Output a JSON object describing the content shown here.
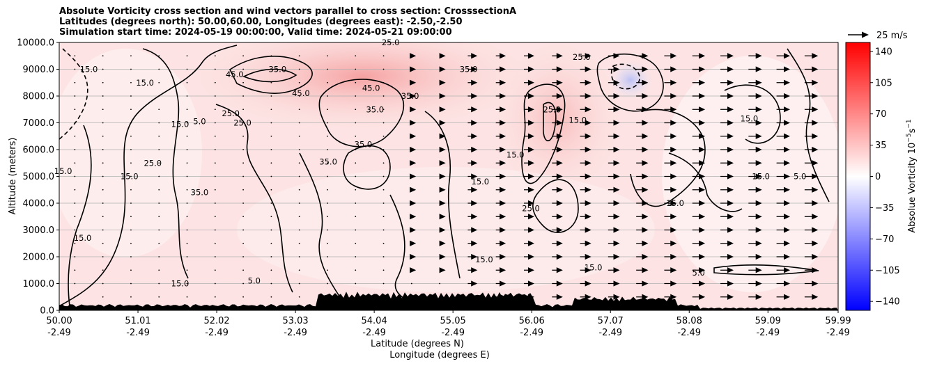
{
  "header": {
    "title_line1": "Absolute Vorticity cross section and wind vectors parallel to cross section: CrosssectionA",
    "title_line2": "Latitudes (degrees north): 50.00,60.00, Longitudes (degrees east): -2.50,-2.50",
    "title_line3": "Simulation start time: 2024-05-19 00:00:00, Valid time: 2024-05-21 09:00:00"
  },
  "chart_data": {
    "type": "heatmap",
    "subtype": "vertical cross section with contours and wind vectors",
    "xlabel_line1": "Latitude (degrees N)",
    "xlabel_line2": "Longitude (degrees E)",
    "ylabel": "Altitude (meters)",
    "ylim": [
      0,
      10000
    ],
    "xlim": [
      50.0,
      59.99
    ],
    "y_ticks": [
      {
        "value": 0,
        "label": "0.0"
      },
      {
        "value": 1000,
        "label": "1000.0"
      },
      {
        "value": 2000,
        "label": "2000.0"
      },
      {
        "value": 3000,
        "label": "3000.0"
      },
      {
        "value": 4000,
        "label": "4000.0"
      },
      {
        "value": 5000,
        "label": "5000.0"
      },
      {
        "value": 6000,
        "label": "6000.0"
      },
      {
        "value": 7000,
        "label": "7000.0"
      },
      {
        "value": 8000,
        "label": "8000.0"
      },
      {
        "value": 9000,
        "label": "9000.0"
      },
      {
        "value": 10000,
        "label": "10000.0"
      }
    ],
    "x_ticks": [
      {
        "lat": 50.0,
        "lat_label": "50.00",
        "lon_label": "-2.49"
      },
      {
        "lat": 51.01,
        "lat_label": "51.01",
        "lon_label": "-2.49"
      },
      {
        "lat": 52.02,
        "lat_label": "52.02",
        "lon_label": "-2.49"
      },
      {
        "lat": 53.03,
        "lat_label": "53.03",
        "lon_label": "-2.49"
      },
      {
        "lat": 54.04,
        "lat_label": "54.04",
        "lon_label": "-2.49"
      },
      {
        "lat": 55.05,
        "lat_label": "55.05",
        "lon_label": "-2.49"
      },
      {
        "lat": 56.06,
        "lat_label": "56.06",
        "lon_label": "-2.49"
      },
      {
        "lat": 57.07,
        "lat_label": "57.07",
        "lon_label": "-2.49"
      },
      {
        "lat": 58.08,
        "lat_label": "58.08",
        "lon_label": "-2.49"
      },
      {
        "lat": 59.09,
        "lat_label": "59.09",
        "lon_label": "-2.49"
      },
      {
        "lat": 59.99,
        "lat_label": "59.99",
        "lon_label": "-2.49"
      }
    ],
    "grid": "horizontal",
    "colorbar": {
      "label": "Absolue Vorticity 10$^{-5}$s$^{-1}$",
      "label_text": "Absolue Vorticity 10",
      "label_exp": "−5",
      "label_unit": "s",
      "label_unit_exp": "−1",
      "range": [
        -150,
        150
      ],
      "ticks": [
        "140",
        "105",
        "70",
        "35",
        "0",
        "−35",
        "−70",
        "−105",
        "−140"
      ],
      "tick_values": [
        140,
        105,
        70,
        35,
        0,
        -35,
        -70,
        -105,
        -140
      ],
      "colormap": "bwr",
      "colors": {
        "low": "#0000ff",
        "mid": "#ffffff",
        "high": "#ff0000"
      }
    },
    "quiver_key": {
      "label": "25 m/s",
      "speed": 25
    },
    "contour_levels": [
      -5,
      5,
      15,
      25,
      35,
      45
    ],
    "contour_labels": [
      {
        "text": "25.0",
        "lat": 54.25,
        "alt": 10000
      },
      {
        "text": "25.0",
        "lat": 56.7,
        "alt": 9450
      },
      {
        "text": "35.0",
        "lat": 55.25,
        "alt": 9000
      },
      {
        "text": "15.0",
        "lat": 50.38,
        "alt": 9000
      },
      {
        "text": "15.0",
        "lat": 51.1,
        "alt": 8500
      },
      {
        "text": "35.0",
        "lat": 52.8,
        "alt": 9000
      },
      {
        "text": "45.0",
        "lat": 52.25,
        "alt": 8800
      },
      {
        "text": "45.0",
        "lat": 53.1,
        "alt": 8100
      },
      {
        "text": "45.0",
        "lat": 54.0,
        "alt": 8300
      },
      {
        "text": "35.0",
        "lat": 54.5,
        "alt": 8000
      },
      {
        "text": "35.0",
        "lat": 54.05,
        "alt": 7500
      },
      {
        "text": "25.0",
        "lat": 52.2,
        "alt": 7350
      },
      {
        "text": "25.0",
        "lat": 52.35,
        "alt": 7000
      },
      {
        "text": "5.0",
        "lat": 51.8,
        "alt": 7050
      },
      {
        "text": "15.0",
        "lat": 51.55,
        "alt": 6950
      },
      {
        "text": "35.0",
        "lat": 53.9,
        "alt": 6200
      },
      {
        "text": "35.0",
        "lat": 53.45,
        "alt": 5550
      },
      {
        "text": "25.0",
        "lat": 51.2,
        "alt": 5500
      },
      {
        "text": "15.0",
        "lat": 50.05,
        "alt": 5200
      },
      {
        "text": "15.0",
        "lat": 50.9,
        "alt": 5000
      },
      {
        "text": "35.0",
        "lat": 51.8,
        "alt": 4400
      },
      {
        "text": "25.0",
        "lat": 56.32,
        "alt": 7500
      },
      {
        "text": "15.0",
        "lat": 56.65,
        "alt": 7100
      },
      {
        "text": "15.0",
        "lat": 55.85,
        "alt": 5800
      },
      {
        "text": "15.0",
        "lat": 55.4,
        "alt": 4800
      },
      {
        "text": "15.0",
        "lat": 58.85,
        "alt": 7150
      },
      {
        "text": "25.0",
        "lat": 56.05,
        "alt": 3800
      },
      {
        "text": "15.0",
        "lat": 50.3,
        "alt": 2700
      },
      {
        "text": "15.0",
        "lat": 55.45,
        "alt": 1900
      },
      {
        "text": "15.0",
        "lat": 56.85,
        "alt": 1600
      },
      {
        "text": "15.0",
        "lat": 51.55,
        "alt": 1000
      },
      {
        "text": "5.0",
        "lat": 52.5,
        "alt": 1100
      },
      {
        "text": "5.0",
        "lat": 58.2,
        "alt": 1400
      },
      {
        "text": "15.0",
        "lat": 57.9,
        "alt": 4000
      },
      {
        "text": "15.0",
        "lat": 59.0,
        "alt": 5000
      },
      {
        "text": "5.0",
        "lat": 59.5,
        "alt": 5000
      }
    ]
  }
}
